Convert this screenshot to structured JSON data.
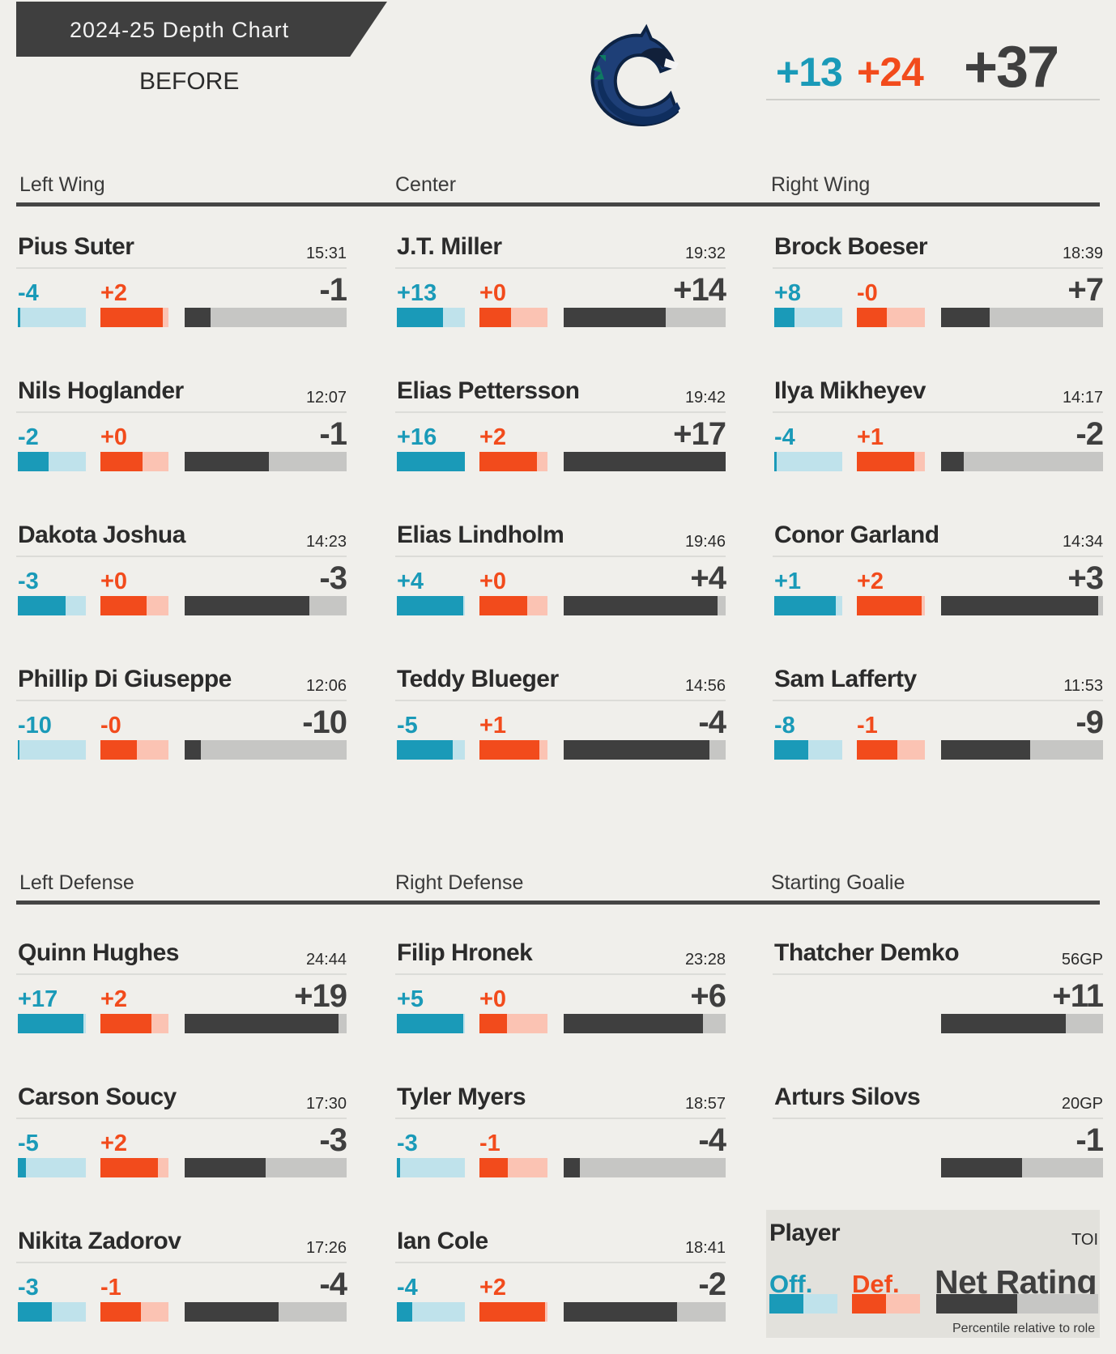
{
  "header": {
    "title": "2024-25 Depth Chart",
    "subtitle": "BEFORE"
  },
  "totals": {
    "off": "+13",
    "def": "+24",
    "net": "+37"
  },
  "colors": {
    "offense": "#1a9ab8",
    "defense": "#f24b1c",
    "net": "#3f3f3f",
    "background": "#f0efeb"
  },
  "logo": {
    "icon": "canucks-orca-logo"
  },
  "sections": {
    "forwards": {
      "left_wing": "Left Wing",
      "center": "Center",
      "right_wing": "Right Wing"
    },
    "defense": {
      "left_defense": "Left Defense",
      "right_defense": "Right Defense",
      "goalie": "Starting Goalie"
    }
  },
  "players": {
    "lw": [
      {
        "name": "Pius Suter",
        "toi": "15:31",
        "off": "-4",
        "def": "+2",
        "net": "-1",
        "off_pct": 0.04,
        "def_pct": 0.92,
        "net_pct": 0.16
      },
      {
        "name": "Nils Hoglander",
        "toi": "12:07",
        "off": "-2",
        "def": "+0",
        "net": "-1",
        "off_pct": 0.45,
        "def_pct": 0.62,
        "net_pct": 0.52
      },
      {
        "name": "Dakota Joshua",
        "toi": "14:23",
        "off": "-3",
        "def": "+0",
        "net": "-3",
        "off_pct": 0.7,
        "def_pct": 0.68,
        "net_pct": 0.77
      },
      {
        "name": "Phillip Di Giuseppe",
        "toi": "12:06",
        "off": "-10",
        "def": "-0",
        "net": "-10",
        "off_pct": 0.02,
        "def_pct": 0.54,
        "net_pct": 0.1
      }
    ],
    "c": [
      {
        "name": "J.T. Miller",
        "toi": "19:32",
        "off": "+13",
        "def": "+0",
        "net": "+14",
        "off_pct": 0.68,
        "def_pct": 0.46,
        "net_pct": 0.63
      },
      {
        "name": "Elias Pettersson",
        "toi": "19:42",
        "off": "+16",
        "def": "+2",
        "net": "+17",
        "off_pct": 1.0,
        "def_pct": 0.84,
        "net_pct": 1.0
      },
      {
        "name": "Elias Lindholm",
        "toi": "19:46",
        "off": "+4",
        "def": "+0",
        "net": "+4",
        "off_pct": 0.98,
        "def_pct": 0.7,
        "net_pct": 0.95
      },
      {
        "name": "Teddy Blueger",
        "toi": "14:56",
        "off": "-5",
        "def": "+1",
        "net": "-4",
        "off_pct": 0.82,
        "def_pct": 0.88,
        "net_pct": 0.9
      }
    ],
    "rw": [
      {
        "name": "Brock Boeser",
        "toi": "18:39",
        "off": "+8",
        "def": "-0",
        "net": "+7",
        "off_pct": 0.3,
        "def_pct": 0.44,
        "net_pct": 0.3
      },
      {
        "name": "Ilya Mikheyev",
        "toi": "14:17",
        "off": "-4",
        "def": "+1",
        "net": "-2",
        "off_pct": 0.04,
        "def_pct": 0.84,
        "net_pct": 0.14
      },
      {
        "name": "Conor Garland",
        "toi": "14:34",
        "off": "+1",
        "def": "+2",
        "net": "+3",
        "off_pct": 0.9,
        "def_pct": 0.95,
        "net_pct": 0.97
      },
      {
        "name": "Sam Lafferty",
        "toi": "11:53",
        "off": "-8",
        "def": "-1",
        "net": "-9",
        "off_pct": 0.5,
        "def_pct": 0.6,
        "net_pct": 0.55
      }
    ],
    "ld": [
      {
        "name": "Quinn Hughes",
        "toi": "24:44",
        "off": "+17",
        "def": "+2",
        "net": "+19",
        "off_pct": 0.97,
        "def_pct": 0.75,
        "net_pct": 0.95
      },
      {
        "name": "Carson Soucy",
        "toi": "17:30",
        "off": "-5",
        "def": "+2",
        "net": "-3",
        "off_pct": 0.12,
        "def_pct": 0.84,
        "net_pct": 0.5
      },
      {
        "name": "Nikita Zadorov",
        "toi": "17:26",
        "off": "-3",
        "def": "-1",
        "net": "-4",
        "off_pct": 0.5,
        "def_pct": 0.6,
        "net_pct": 0.58
      }
    ],
    "rd": [
      {
        "name": "Filip Hronek",
        "toi": "23:28",
        "off": "+5",
        "def": "+0",
        "net": "+6",
        "off_pct": 0.98,
        "def_pct": 0.4,
        "net_pct": 0.86
      },
      {
        "name": "Tyler Myers",
        "toi": "18:57",
        "off": "-3",
        "def": "-1",
        "net": "-4",
        "off_pct": 0.05,
        "def_pct": 0.42,
        "net_pct": 0.1
      },
      {
        "name": "Ian Cole",
        "toi": "18:41",
        "off": "-4",
        "def": "+2",
        "net": "-2",
        "off_pct": 0.23,
        "def_pct": 0.97,
        "net_pct": 0.7
      }
    ],
    "g": [
      {
        "name": "Thatcher Demko",
        "toi": "56GP",
        "net": "+11",
        "net_pct": 0.77
      },
      {
        "name": "Arturs Silovs",
        "toi": "20GP",
        "net": "-1",
        "net_pct": 0.5
      }
    ]
  },
  "legend": {
    "player": "Player",
    "toi": "TOI",
    "off": "Off.",
    "def": "Def.",
    "net": "Net Rating",
    "note": "Percentile relative to role",
    "off_pct": 0.5,
    "def_pct": 0.5,
    "net_pct": 0.5
  }
}
